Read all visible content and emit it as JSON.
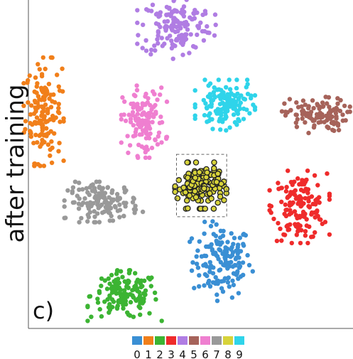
{
  "panel_label": "c)",
  "chart_data": {
    "type": "scatter",
    "ylabel": "after training",
    "xlim": [
      0,
      100
    ],
    "ylim": [
      0,
      100
    ],
    "grid": false,
    "legend": {
      "placement": "bottom-center",
      "labels": [
        "0",
        "1",
        "2",
        "3",
        "4",
        "5",
        "6",
        "7",
        "8",
        "9"
      ]
    },
    "highlight": {
      "class": "8",
      "box": {
        "x": [
          45.5,
          61
        ],
        "y": [
          34,
          53
        ]
      }
    },
    "series": [
      {
        "name": "0",
        "color": "#3a8fd4",
        "cx": 59.5,
        "cy": 20.5,
        "sx": 4.5,
        "sy": 5.5,
        "n": 150
      },
      {
        "name": "1",
        "color": "#f17f1a",
        "cx": 4.5,
        "cy": 66,
        "sx": 2.8,
        "sy": 7.5,
        "n": 150
      },
      {
        "name": "2",
        "color": "#3cb433",
        "cx": 29.5,
        "cy": 10,
        "sx": 5.2,
        "sy": 3.5,
        "n": 150
      },
      {
        "name": "3",
        "color": "#ef2b2b",
        "cx": 83.5,
        "cy": 37,
        "sx": 4.2,
        "sy": 5,
        "n": 150
      },
      {
        "name": "4",
        "color": "#b07de3",
        "cx": 45.5,
        "cy": 92,
        "sx": 5.5,
        "sy": 4.5,
        "n": 150
      },
      {
        "name": "5",
        "color": "#a6635a",
        "cx": 88.5,
        "cy": 65,
        "sx": 4.8,
        "sy": 2.5,
        "n": 110
      },
      {
        "name": "6",
        "color": "#ef7fd0",
        "cx": 35.5,
        "cy": 63,
        "sx": 3.2,
        "sy": 5,
        "n": 130
      },
      {
        "name": "7",
        "color": "#999999",
        "cx": 23,
        "cy": 38.5,
        "sx": 5.5,
        "sy": 2.8,
        "n": 140
      },
      {
        "name": "8",
        "color": "#d7d33a",
        "cx": 53,
        "cy": 43.5,
        "sx": 3.6,
        "sy": 3.2,
        "n": 150
      },
      {
        "name": "9",
        "color": "#2fd4ea",
        "cx": 60.5,
        "cy": 68,
        "sx": 4.2,
        "sy": 3.5,
        "n": 140
      }
    ]
  }
}
